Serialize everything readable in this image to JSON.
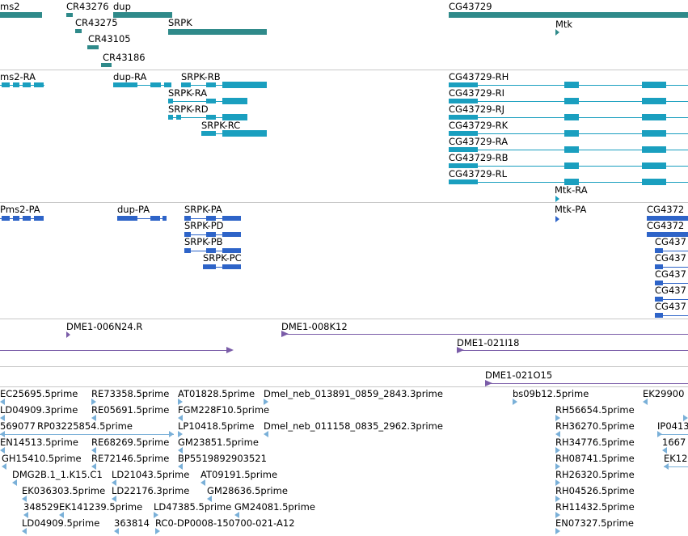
{
  "colors": {
    "gene": "#2f8a8a",
    "transcript": "#1a9fbf",
    "protein": "#2e64c8",
    "clone": "#7a5ca8",
    "est": "#7ab0d8",
    "divider": "#c8c8c8"
  },
  "gene_track": {
    "genes": [
      "ms2",
      "CR43276",
      "dup",
      "CR43275",
      "CR43105",
      "CR43186",
      "SRPK",
      "CG43729",
      "Mtk"
    ]
  },
  "transcript_track": {
    "transcripts": [
      "ms2-RA",
      "dup-RA",
      "SRPK-RB",
      "SRPK-RA",
      "SRPK-RD",
      "SRPK-RC",
      "CG43729-RH",
      "CG43729-RI",
      "CG43729-RJ",
      "CG43729-RK",
      "CG43729-RA",
      "CG43729-RB",
      "CG43729-RL",
      "Mtk-RA"
    ]
  },
  "protein_track": {
    "proteins": [
      "Pms2-PA",
      "dup-PA",
      "SRPK-PA",
      "SRPK-PD",
      "SRPK-PB",
      "SRPK-PC",
      "Mtk-PA",
      "CG4372",
      "CG4372",
      "CG437",
      "CG437",
      "CG437",
      "CG437",
      "CG437"
    ]
  },
  "clone_track": {
    "clones": [
      "DME1-006N24.R",
      "DME1-008K12",
      "DME1-021I18",
      "DME1-021O15"
    ]
  },
  "est_track": {
    "ests": [
      "EC25695.5prime",
      "RE73358.5prime",
      "AT01828.5prime",
      "Dmel_neb_013891_0859_2843.3prime",
      "bs09b12.5prime",
      "EK29900",
      "LD04909.3prime",
      "RE05691.5prime",
      "FGM228F10.5prime",
      "RH56654.5prime",
      "569077",
      "RP03225854.5prime",
      "LP10418.5prime",
      "Dmel_neb_011158_0835_2962.3prime",
      "RH36270.5prime",
      "IP0413",
      "EN14513.5prime",
      "RE68269.5prime",
      "GM23851.5prime",
      "RH34776.5prime",
      "1667",
      "GH15410.5prime",
      "RE72146.5prime",
      "BP5519892903521",
      "RH08741.5prime",
      "EK12",
      "DMG2B.1_1.K15.C1",
      "LD21043.5prime",
      "AT09191.5prime",
      "RH26320.5prime",
      "EK036303.5prime",
      "LD22176.3prime",
      "GM28636.5prime",
      "RH04526.5prime",
      "348529",
      "EK141239.5prime",
      "LD47385.5prime",
      "GM24081.5prime",
      "RH11432.5prime",
      "LD04909.5prime",
      "363814",
      "RC0-DP0008-150700-021-A12",
      "EN07327.5prime"
    ]
  }
}
